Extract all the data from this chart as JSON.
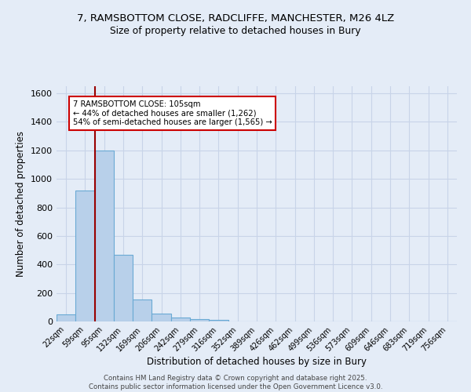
{
  "title_line1": "7, RAMSBOTTOM CLOSE, RADCLIFFE, MANCHESTER, M26 4LZ",
  "title_line2": "Size of property relative to detached houses in Bury",
  "xlabel": "Distribution of detached houses by size in Bury",
  "ylabel": "Number of detached properties",
  "bar_labels": [
    "22sqm",
    "59sqm",
    "95sqm",
    "132sqm",
    "169sqm",
    "206sqm",
    "242sqm",
    "279sqm",
    "316sqm",
    "352sqm",
    "389sqm",
    "426sqm",
    "462sqm",
    "499sqm",
    "536sqm",
    "573sqm",
    "609sqm",
    "646sqm",
    "683sqm",
    "719sqm",
    "756sqm"
  ],
  "bar_values": [
    50,
    920,
    1200,
    470,
    155,
    55,
    30,
    15,
    10,
    0,
    0,
    0,
    0,
    0,
    0,
    0,
    0,
    0,
    0,
    0,
    0
  ],
  "bar_color": "#b8d0ea",
  "bar_edge_color": "#6aaad4",
  "grid_color": "#c8d4e8",
  "background_color": "#e4ecf7",
  "vline_color": "#990000",
  "vline_x_index": 2,
  "annotation_text": "7 RAMSBOTTOM CLOSE: 105sqm\n← 44% of detached houses are smaller (1,262)\n54% of semi-detached houses are larger (1,565) →",
  "annotation_box_color": "white",
  "annotation_box_edge": "#cc0000",
  "ylim": [
    0,
    1650
  ],
  "yticks": [
    0,
    200,
    400,
    600,
    800,
    1000,
    1200,
    1400,
    1600
  ],
  "footnote": "Contains HM Land Registry data © Crown copyright and database right 2025.\nContains public sector information licensed under the Open Government Licence v3.0."
}
